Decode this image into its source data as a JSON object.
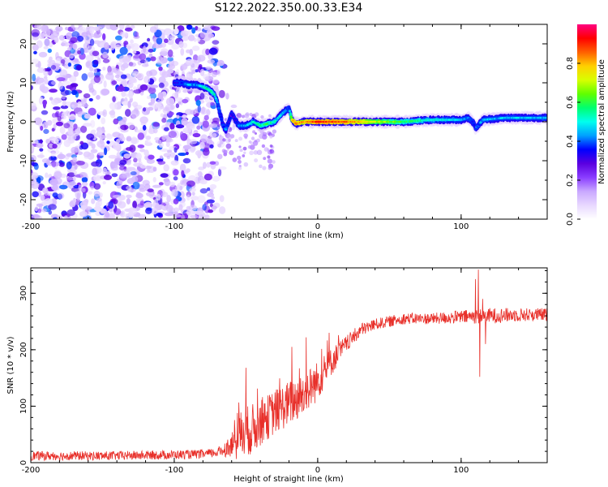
{
  "figure": {
    "title": "S122.2022.350.00.33.E34"
  },
  "chart_data": [
    {
      "type": "heatmap",
      "xlabel": "Height of straight line (km)",
      "ylabel": "Frequency (Hz)",
      "xlim": [
        -200,
        160
      ],
      "ylim": [
        -25,
        25
      ],
      "xticks": [
        -200,
        -100,
        0,
        100
      ],
      "yticks": [
        -20,
        -10,
        0,
        10,
        20
      ],
      "colorbar": {
        "label": "Normalized spectral amplitude",
        "range": [
          0,
          1
        ],
        "ticks": [
          0.0,
          0.2,
          0.4,
          0.6,
          0.8
        ],
        "colors": [
          "#ffffff",
          "#e8d8ff",
          "#c9a8ff",
          "#8a3dff",
          "#5a00e0",
          "#0000ff",
          "#00a0ff",
          "#00ffee",
          "#00ff70",
          "#60ff00",
          "#d8ff00",
          "#ffd000",
          "#ff6000",
          "#ff0000",
          "#ff0080"
        ]
      },
      "ridge": {
        "x": [
          -100,
          -95,
          -90,
          -85,
          -80,
          -75,
          -72,
          -70,
          -68,
          -66,
          -64,
          -60,
          -55,
          -50,
          -45,
          -40,
          -35,
          -30,
          -25,
          -22,
          -20,
          -18,
          -15,
          -10,
          0,
          20,
          40,
          60,
          80,
          100,
          105,
          108,
          110,
          112,
          115,
          130,
          145,
          160
        ],
        "y": [
          10,
          10,
          9.5,
          9.5,
          9,
          8,
          7,
          5,
          2,
          -1,
          -2,
          2,
          -1,
          -1,
          0,
          -1,
          -0.5,
          0,
          2,
          3,
          3.5,
          0.5,
          -0.5,
          0,
          0,
          0,
          0,
          0,
          0.5,
          0.5,
          1,
          0,
          -1.5,
          -1,
          0.5,
          1,
          1,
          1
        ],
        "strength": [
          0.35,
          0.35,
          0.45,
          0.4,
          0.5,
          0.55,
          0.5,
          0.45,
          0.3,
          0.35,
          0.4,
          0.3,
          0.4,
          0.45,
          0.5,
          0.55,
          0.6,
          0.5,
          0.45,
          0.4,
          0.35,
          0.75,
          0.85,
          0.8,
          0.9,
          0.85,
          0.7,
          0.6,
          0.5,
          0.45,
          0.4,
          0.35,
          0.35,
          0.4,
          0.45,
          0.45,
          0.45,
          0.45
        ]
      },
      "noise": {
        "x_range": [
          -200,
          -70
        ],
        "level": 0.2
      }
    },
    {
      "type": "line",
      "xlabel": "Height of straight line (km)",
      "ylabel": "SNR (10 * v/v)",
      "xlim": [
        -200,
        160
      ],
      "ylim": [
        0,
        345
      ],
      "xticks": [
        -200,
        -100,
        0,
        100
      ],
      "yticks": [
        0,
        100,
        200,
        300
      ],
      "color": "#e8302a",
      "envelope": {
        "x": [
          -200,
          -150,
          -100,
          -80,
          -70,
          -60,
          -55,
          -50,
          -45,
          -40,
          -30,
          -20,
          -10,
          0,
          10,
          20,
          30,
          40,
          60,
          80,
          100,
          120,
          140,
          160
        ],
        "y": [
          12,
          12,
          14,
          15,
          18,
          30,
          45,
          55,
          60,
          70,
          90,
          105,
          120,
          145,
          180,
          210,
          235,
          245,
          255,
          255,
          258,
          260,
          262,
          262
        ],
        "jitter": [
          8,
          8,
          8,
          8,
          8,
          20,
          45,
          45,
          45,
          40,
          40,
          40,
          40,
          35,
          25,
          15,
          12,
          10,
          10,
          10,
          12,
          14,
          12,
          12
        ]
      },
      "spikes": [
        {
          "x": -50,
          "y": 168
        },
        {
          "x": -56,
          "y": 88
        },
        {
          "x": -18,
          "y": 205
        },
        {
          "x": -8,
          "y": 222
        },
        {
          "x": 8,
          "y": 230
        },
        {
          "x": 110,
          "y": 325
        },
        {
          "x": 112,
          "y": 342
        },
        {
          "x": 113,
          "y": 152
        },
        {
          "x": 115,
          "y": 290
        },
        {
          "x": 117,
          "y": 210
        }
      ]
    }
  ]
}
